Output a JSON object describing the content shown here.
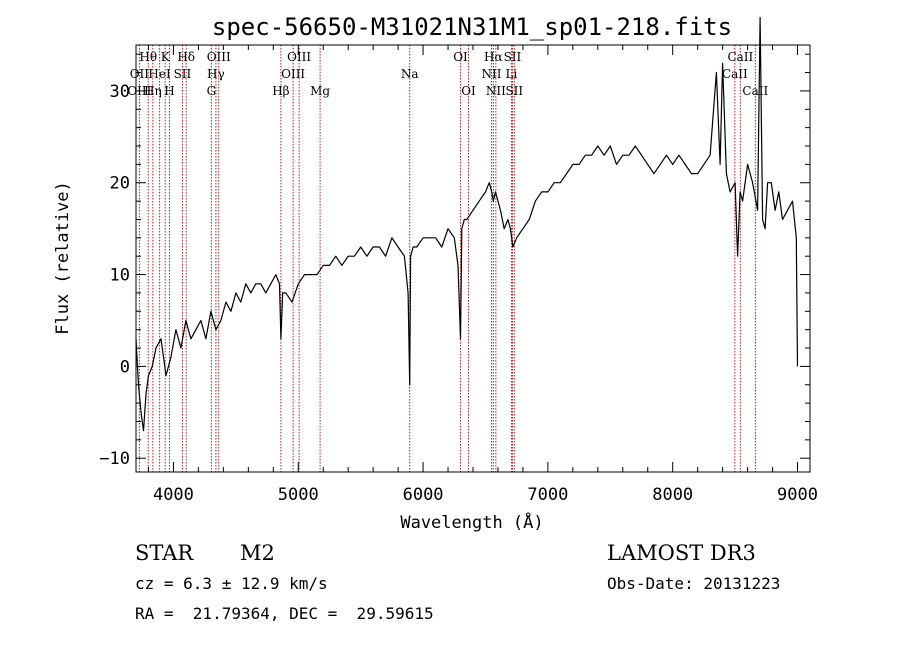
{
  "chart_data": {
    "type": "line",
    "title": "spec-56650-M31021N31M1_sp01-218.fits",
    "xlabel": "Wavelength (Å)",
    "ylabel": "Flux (relative)",
    "xlim": [
      3700,
      9100
    ],
    "ylim": [
      -11.5,
      35
    ],
    "xticks": [
      4000,
      5000,
      6000,
      7000,
      8000,
      9000
    ],
    "yticks": [
      -10,
      0,
      10,
      20,
      30
    ],
    "x_tick_labels": [
      "4000",
      "5000",
      "6000",
      "7000",
      "8000",
      "9000"
    ],
    "y_tick_labels": [
      "−10",
      "0",
      "10",
      "20",
      "30"
    ],
    "series": [
      {
        "name": "flux",
        "x": [
          3700,
          3720,
          3740,
          3760,
          3780,
          3800,
          3830,
          3860,
          3900,
          3940,
          3980,
          4020,
          4060,
          4100,
          4140,
          4180,
          4220,
          4260,
          4300,
          4340,
          4380,
          4420,
          4460,
          4500,
          4540,
          4580,
          4620,
          4660,
          4700,
          4740,
          4780,
          4820,
          4850,
          4861,
          4875,
          4900,
          4950,
          5000,
          5050,
          5100,
          5150,
          5200,
          5250,
          5300,
          5350,
          5400,
          5450,
          5500,
          5550,
          5600,
          5650,
          5700,
          5750,
          5800,
          5850,
          5880,
          5893,
          5900,
          5920,
          5950,
          6000,
          6050,
          6100,
          6150,
          6200,
          6250,
          6280,
          6300,
          6310,
          6330,
          6350,
          6400,
          6450,
          6500,
          6530,
          6550,
          6563,
          6580,
          6600,
          6620,
          6650,
          6680,
          6700,
          6720,
          6750,
          6800,
          6850,
          6900,
          6950,
          7000,
          7050,
          7100,
          7150,
          7200,
          7250,
          7300,
          7350,
          7400,
          7450,
          7500,
          7550,
          7600,
          7650,
          7700,
          7750,
          7800,
          7850,
          7900,
          7950,
          8000,
          8050,
          8100,
          8150,
          8200,
          8250,
          8300,
          8350,
          8380,
          8400,
          8430,
          8460,
          8500,
          8520,
          8540,
          8560,
          8600,
          8640,
          8680,
          8700,
          8720,
          8740,
          8760,
          8790,
          8820,
          8850,
          8880,
          8920,
          8960,
          8990,
          9000
        ],
        "values": [
          3,
          -2,
          -5,
          -7,
          -3,
          -1,
          0,
          2,
          3,
          -1,
          1,
          4,
          2,
          5,
          3,
          4,
          5,
          3,
          6,
          4,
          5,
          7,
          6,
          8,
          7,
          9,
          8,
          9,
          9,
          8,
          9,
          10,
          9,
          3,
          8,
          8,
          7,
          9,
          10,
          10,
          10,
          11,
          11,
          12,
          11,
          12,
          12,
          13,
          12,
          13,
          13,
          12,
          14,
          13,
          12,
          8,
          -2,
          12,
          13,
          13,
          14,
          14,
          14,
          13,
          15,
          14,
          11,
          3,
          15,
          16,
          16,
          17,
          18,
          19,
          20,
          19,
          18,
          19,
          18,
          17,
          15,
          16,
          15,
          13,
          14,
          15,
          16,
          18,
          19,
          19,
          20,
          20,
          21,
          22,
          22,
          23,
          23,
          24,
          23,
          24,
          22,
          23,
          23,
          24,
          23,
          22,
          21,
          22,
          23,
          22,
          23,
          22,
          21,
          21,
          22,
          23,
          32,
          22,
          33,
          21,
          19,
          20,
          12,
          19,
          18,
          22,
          20,
          17,
          38,
          16,
          15,
          20,
          20,
          17,
          19,
          16,
          17,
          18,
          14,
          0
        ]
      }
    ],
    "spectral_lines": [
      {
        "label": "Hθ",
        "wl": 3798,
        "row": 0
      },
      {
        "label": "OII",
        "wl": 3727,
        "row": 1
      },
      {
        "label": "OIII",
        "wl": 3727,
        "row": 2
      },
      {
        "label": "Hη",
        "wl": 3835,
        "row": 2
      },
      {
        "label": "HeI",
        "wl": 3889,
        "row": 1
      },
      {
        "label": "K",
        "wl": 3934,
        "row": 0
      },
      {
        "label": "H",
        "wl": 3968,
        "row": 2
      },
      {
        "label": "SII",
        "wl": 4072,
        "row": 1
      },
      {
        "label": "Hδ",
        "wl": 4102,
        "row": 0
      },
      {
        "label": "G",
        "wl": 4304,
        "row": 2
      },
      {
        "label": "Hγ",
        "wl": 4340,
        "row": 1
      },
      {
        "label": "OIII",
        "wl": 4363,
        "row": 0
      },
      {
        "label": "Hβ",
        "wl": 4861,
        "row": 2
      },
      {
        "label": "OIII",
        "wl": 4959,
        "row": 1
      },
      {
        "label": "OIII",
        "wl": 5007,
        "row": 0
      },
      {
        "label": "Mg",
        "wl": 5175,
        "row": 2
      },
      {
        "label": "Na",
        "wl": 5893,
        "row": 1
      },
      {
        "label": "OI",
        "wl": 6300,
        "row": 0
      },
      {
        "label": "OI",
        "wl": 6364,
        "row": 2
      },
      {
        "label": "NII",
        "wl": 6548,
        "row": 1
      },
      {
        "label": "Hα",
        "wl": 6563,
        "row": 0
      },
      {
        "label": "NII",
        "wl": 6583,
        "row": 2
      },
      {
        "label": "Li",
        "wl": 6708,
        "row": 1
      },
      {
        "label": "SII",
        "wl": 6716,
        "row": 0
      },
      {
        "label": "SII",
        "wl": 6731,
        "row": 2
      },
      {
        "label": "CaII",
        "wl": 8498,
        "row": 1
      },
      {
        "label": "CaII",
        "wl": 8542,
        "row": 0
      },
      {
        "label": "CaII",
        "wl": 8662,
        "row": 2
      }
    ]
  },
  "info": {
    "object_class": "STAR",
    "subclass": "M2",
    "survey": "LAMOST DR3",
    "cz": "cz = 6.3 ± 12.9 km/s",
    "obs_date": "Obs-Date: 20131223",
    "coords": "RA =  21.79364, DEC =  29.59615"
  },
  "colors": {
    "line_marker": "#b22222",
    "spectrum": "#000000",
    "axes": "#000000"
  }
}
